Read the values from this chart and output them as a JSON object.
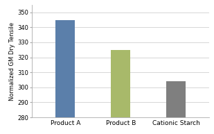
{
  "categories": [
    "Product A",
    "Product B",
    "Cationic Starch"
  ],
  "values": [
    345,
    325,
    304
  ],
  "bar_colors": [
    "#5b7faa",
    "#a8b96a",
    "#7f7f7f"
  ],
  "ylabel": "Normalized GM Dry Tensile",
  "ylim": [
    280,
    355
  ],
  "yticks": [
    280,
    290,
    300,
    310,
    320,
    330,
    340,
    350
  ],
  "grid_color": "#d0d0d0",
  "background_color": "#ffffff",
  "bar_width": 0.35,
  "ylabel_fontsize": 6.0,
  "tick_fontsize": 6.0,
  "xlabel_fontsize": 6.5,
  "spine_color": "#aaaaaa"
}
